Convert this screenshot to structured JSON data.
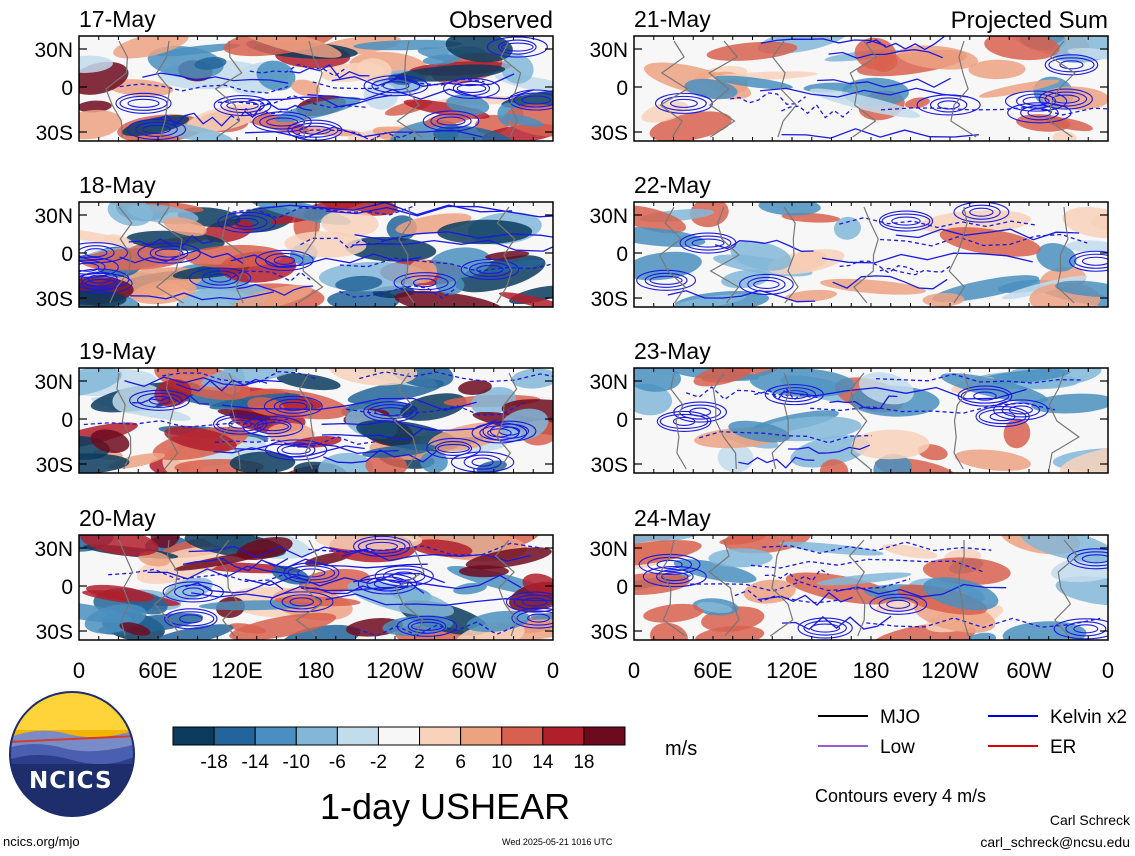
{
  "variable_title": "1-day USHEAR",
  "column_titles": {
    "left": "Observed",
    "right": "Projected Sum"
  },
  "chart_data": [
    {
      "type": "heatmap",
      "date": "17-May",
      "column": "observed"
    },
    {
      "type": "heatmap",
      "date": "18-May",
      "column": "observed"
    },
    {
      "type": "heatmap",
      "date": "19-May",
      "column": "observed"
    },
    {
      "type": "heatmap",
      "date": "20-May",
      "column": "observed"
    },
    {
      "type": "heatmap",
      "date": "21-May",
      "column": "projected"
    },
    {
      "type": "heatmap",
      "date": "22-May",
      "column": "projected"
    },
    {
      "type": "heatmap",
      "date": "23-May",
      "column": "projected"
    },
    {
      "type": "heatmap",
      "date": "24-May",
      "column": "projected"
    }
  ],
  "axes": {
    "lat_ticks": [
      "30N",
      "0",
      "30S"
    ],
    "lon_ticks": [
      "0",
      "60E",
      "120E",
      "180",
      "120W",
      "60W",
      "0"
    ]
  },
  "colorbar": {
    "labels": [
      "-18",
      "-14",
      "-10",
      "-6",
      "-2",
      "2",
      "6",
      "10",
      "14",
      "18"
    ],
    "colors": [
      "#0b3b5e",
      "#23659a",
      "#4a8fc0",
      "#83b7d8",
      "#c3dcec",
      "#f7f7f7",
      "#f8d2bb",
      "#eda282",
      "#d8604e",
      "#b11f2d",
      "#6e0a1e"
    ],
    "unit": "m/s"
  },
  "legend": {
    "items": [
      {
        "label": "MJO",
        "color": "#000000"
      },
      {
        "label": "Kelvin x2",
        "color": "#0000dd"
      },
      {
        "label": "Low",
        "color": "#9a5cd6"
      },
      {
        "label": "ER",
        "color": "#dd0000"
      }
    ],
    "contour_note": "Contours every 4 m/s"
  },
  "logo": {
    "text": "NCICS"
  },
  "footer": {
    "left": "ncics.org/mjo",
    "center": "Wed 2025-05-21 1016 UTC",
    "author": "Carl Schreck",
    "email": "carl_schreck@ncsu.edu"
  }
}
